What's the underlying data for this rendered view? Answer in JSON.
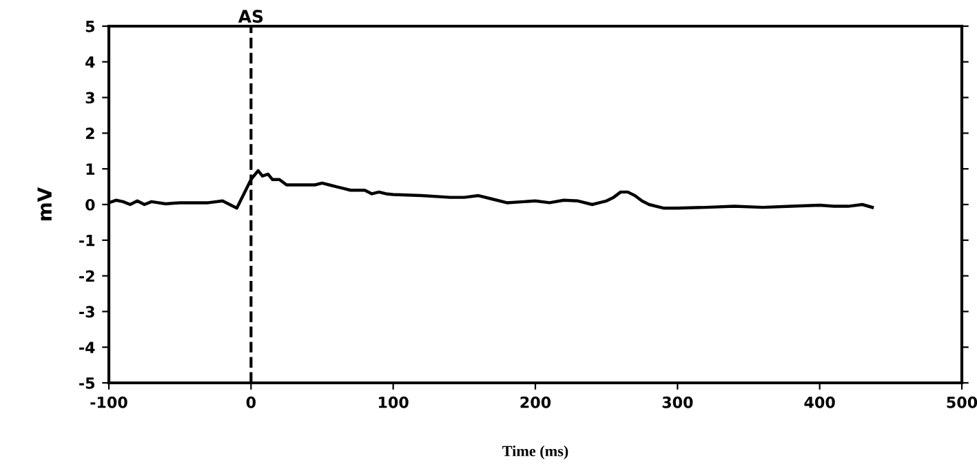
{
  "chart_data": {
    "type": "line",
    "xlabel": "Time (ms)",
    "ylabel": "mV",
    "xlim": [
      -100,
      500
    ],
    "ylim": [
      -5,
      5
    ],
    "xticks": [
      -100,
      0,
      100,
      200,
      300,
      400,
      500
    ],
    "yticks": [
      -5,
      -4,
      -3,
      -2,
      -1,
      0,
      1,
      2,
      3,
      4,
      5
    ],
    "grid": false,
    "marker": "none",
    "line_style": "solid",
    "ref_lines": [
      {
        "axis": "x",
        "value": 0,
        "label": "AS",
        "color": "#000000",
        "line_style": "dashed"
      }
    ],
    "series": [
      {
        "color": "#000000",
        "x": [
          -100,
          -95,
          -90,
          -85,
          -80,
          -75,
          -70,
          -60,
          -50,
          -40,
          -30,
          -20,
          -15,
          -10,
          -5,
          0,
          3,
          5,
          8,
          12,
          15,
          20,
          25,
          35,
          45,
          50,
          55,
          60,
          65,
          70,
          80,
          85,
          90,
          95,
          100,
          120,
          140,
          150,
          160,
          170,
          180,
          200,
          210,
          220,
          230,
          240,
          245,
          250,
          255,
          260,
          265,
          270,
          275,
          280,
          290,
          300,
          320,
          340,
          360,
          380,
          400,
          410,
          420,
          430,
          437
        ],
        "values": [
          0.05,
          0.12,
          0.08,
          0.0,
          0.1,
          0.0,
          0.08,
          0.02,
          0.05,
          0.05,
          0.05,
          0.1,
          0.0,
          -0.1,
          0.3,
          0.7,
          0.85,
          0.95,
          0.8,
          0.85,
          0.7,
          0.7,
          0.55,
          0.55,
          0.55,
          0.6,
          0.55,
          0.5,
          0.45,
          0.4,
          0.4,
          0.3,
          0.35,
          0.3,
          0.28,
          0.25,
          0.2,
          0.2,
          0.25,
          0.15,
          0.05,
          0.1,
          0.05,
          0.12,
          0.1,
          0.0,
          0.05,
          0.1,
          0.2,
          0.35,
          0.35,
          0.25,
          0.1,
          0.0,
          -0.1,
          -0.1,
          -0.08,
          -0.05,
          -0.08,
          -0.05,
          -0.02,
          -0.05,
          -0.05,
          0.0,
          -0.08
        ]
      }
    ]
  }
}
